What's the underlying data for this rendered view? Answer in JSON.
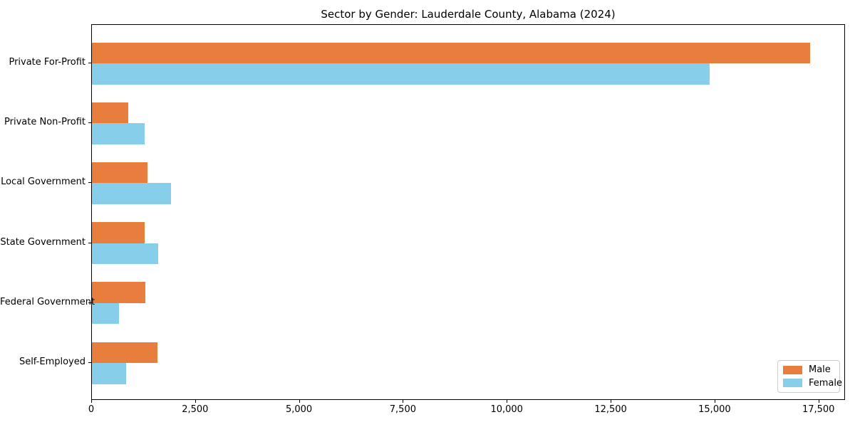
{
  "chart_data": {
    "type": "bar",
    "orientation": "horizontal",
    "title": "Sector by Gender: Lauderdale County, Alabama (2024)",
    "categories": [
      "Private For-Profit",
      "Private Non-Profit",
      "Local Government",
      "State Government",
      "Federal Government",
      "Self-Employed"
    ],
    "series": [
      {
        "name": "Male",
        "color": "#e87e3e",
        "values": [
          17280,
          880,
          1340,
          1260,
          1290,
          1580
        ]
      },
      {
        "name": "Female",
        "color": "#87ceeb",
        "values": [
          14860,
          1260,
          1910,
          1600,
          650,
          830
        ]
      }
    ],
    "xlabel": "",
    "ylabel": "",
    "xlim": [
      0,
      18140
    ],
    "xticks": [
      0,
      2500,
      5000,
      7500,
      10000,
      12500,
      15000,
      17500
    ],
    "xtick_labels": [
      "0",
      "2,500",
      "5,000",
      "7,500",
      "10,000",
      "12,500",
      "15,000",
      "17,500"
    ],
    "grid": false,
    "legend": {
      "position": "lower right"
    }
  }
}
